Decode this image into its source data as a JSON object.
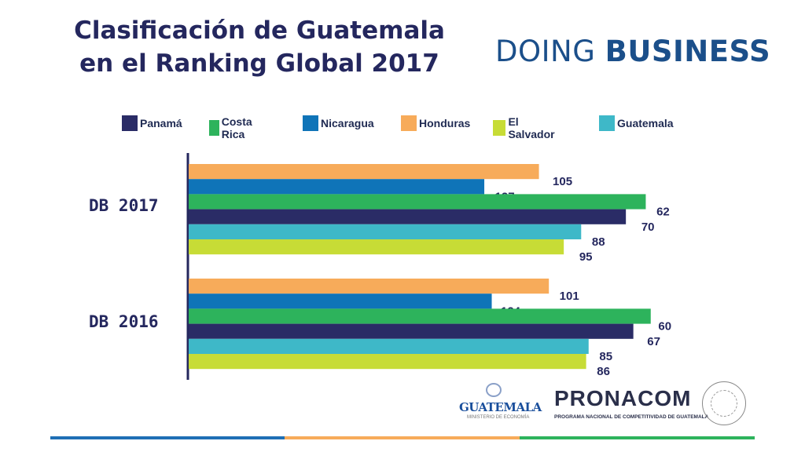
{
  "title": {
    "line1": "Clasificación de Guatemala",
    "line2": "en el Ranking Global 2017"
  },
  "brand": {
    "word1": "DOING",
    "word2": "BUSINESS"
  },
  "logos": {
    "gt_title": "GUATEMALA",
    "gt_ministry": "MINISTERIO DE ECONOMÍA",
    "pronacom": "PRONACOM",
    "pronacom_sub": "PROGRAMA NACIONAL DE COMPETITIVIDAD DE GUATEMALA"
  },
  "colors": {
    "Panamá": "#2a2c66",
    "Costa Rica": "#2db35c",
    "Nicaragua": "#0f74b8",
    "Honduras": "#f7ab5a",
    "El Salvador": "#c7dc36",
    "Guatemala": "#3eb8c8",
    "axis": "#24275e",
    "label": "#24275e"
  },
  "chart_data": {
    "type": "bar",
    "orientation": "horizontal",
    "title": "Clasificación de Guatemala en el Ranking Global 2017",
    "categories": [
      "DB 2017",
      "DB 2016"
    ],
    "legend": [
      "Panamá",
      "Costa Rica",
      "Nicaragua",
      "Honduras",
      "El Salvador",
      "Guatemala"
    ],
    "legend_position": "top",
    "bar_order_top_to_bottom": [
      "Honduras",
      "Nicaragua",
      "Costa Rica",
      "Panamá",
      "Guatemala",
      "El Salvador"
    ],
    "series": [
      {
        "name": "Panamá",
        "values": [
          70,
          67
        ]
      },
      {
        "name": "Costa Rica",
        "values": [
          62,
          60
        ]
      },
      {
        "name": "Nicaragua",
        "values": [
          127,
          124
        ]
      },
      {
        "name": "Honduras",
        "values": [
          105,
          101
        ]
      },
      {
        "name": "El Salvador",
        "values": [
          95,
          86
        ]
      },
      {
        "name": "Guatemala",
        "values": [
          88,
          85
        ]
      }
    ],
    "grid": false,
    "xlabel": "",
    "ylabel": ""
  }
}
